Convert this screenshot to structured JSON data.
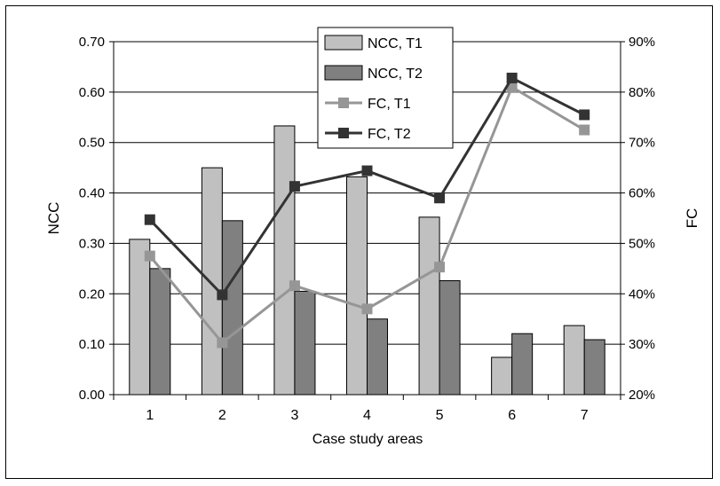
{
  "chart_data": {
    "type": "bar",
    "categories": [
      "1",
      "2",
      "3",
      "4",
      "5",
      "6",
      "7"
    ],
    "xlabel": "Case study areas",
    "ylabel": "NCC",
    "y2label": "FC",
    "ylim": [
      0,
      0.7
    ],
    "y2lim": [
      20,
      90
    ],
    "yticks": [
      "0.00",
      "0.10",
      "0.20",
      "0.30",
      "0.40",
      "0.50",
      "0.60",
      "0.70"
    ],
    "y2ticks": [
      "20%",
      "30%",
      "40%",
      "50%",
      "60%",
      "70%",
      "80%",
      "90%"
    ],
    "grid": true,
    "legend_position": "top-center",
    "series": [
      {
        "name": "NCC, T1",
        "kind": "bar",
        "axis": "left",
        "color": "#c0c0c0",
        "values": [
          0.308,
          0.45,
          0.533,
          0.432,
          0.352,
          0.074,
          0.137
        ]
      },
      {
        "name": "NCC, T2",
        "kind": "bar",
        "axis": "left",
        "color": "#808080",
        "values": [
          0.25,
          0.345,
          0.205,
          0.15,
          0.226,
          0.121,
          0.109
        ]
      },
      {
        "name": "FC, T1",
        "kind": "line",
        "axis": "right",
        "color": "#969696",
        "values": [
          47.5,
          30.3,
          41.6,
          37.0,
          45.3,
          81.0,
          72.5
        ]
      },
      {
        "name": "FC, T2",
        "kind": "line",
        "axis": "right",
        "color": "#333333",
        "values": [
          54.7,
          39.8,
          61.3,
          64.4,
          59.0,
          82.8,
          75.5
        ]
      }
    ]
  }
}
